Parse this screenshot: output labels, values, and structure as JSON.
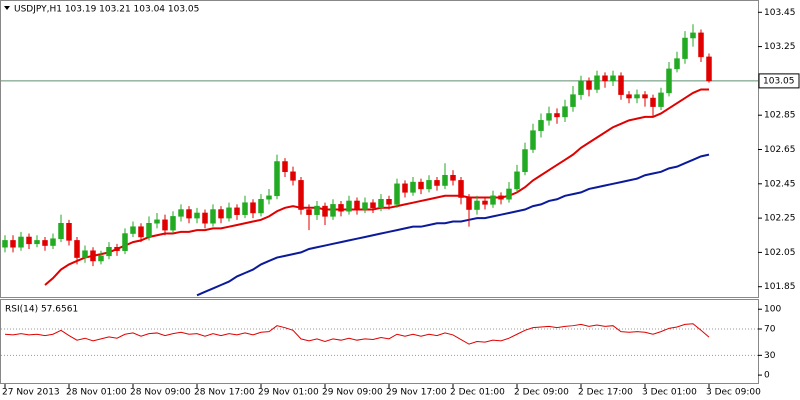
{
  "chart_data": [
    {
      "type": "candlestick",
      "title": "USDJPY,H1  103.19 103.21 103.04 103.05",
      "x": [
        "27 Nov 2013",
        null,
        null,
        null,
        null,
        null,
        null,
        null,
        "28 Nov 01:00",
        null,
        null,
        null,
        null,
        null,
        null,
        null,
        "28 Nov 09:00",
        null,
        null,
        null,
        null,
        null,
        null,
        null,
        "28 Nov 17:00",
        null,
        null,
        null,
        null,
        null,
        null,
        null,
        "29 Nov 01:00",
        null,
        null,
        null,
        null,
        null,
        null,
        null,
        "29 Nov 09:00",
        null,
        null,
        null,
        null,
        null,
        null,
        null,
        "29 Nov 17:00",
        null,
        null,
        null,
        null,
        null,
        null,
        null,
        "2 Dec 01:00",
        null,
        null,
        null,
        null,
        null,
        null,
        null,
        "2 Dec 09:00",
        null,
        null,
        null,
        null,
        null,
        null,
        null,
        "2 Dec 17:00",
        null,
        null,
        null,
        null,
        null,
        null,
        null,
        "3 Dec 01:00",
        null,
        null,
        null,
        null,
        null,
        null,
        null,
        "3 Dec 09:00"
      ],
      "open": [
        102.08,
        102.12,
        102.08,
        102.14,
        102.1,
        102.12,
        102.09,
        102.13,
        102.22,
        102.12,
        102.02,
        102.06,
        102.0,
        102.03,
        102.08,
        102.06,
        102.16,
        102.2,
        102.14,
        102.22,
        102.24,
        102.18,
        102.26,
        102.3,
        102.25,
        102.28,
        102.22,
        102.3,
        102.25,
        102.31,
        102.27,
        102.34,
        102.28,
        102.36,
        102.38,
        102.58,
        102.52,
        102.47,
        102.3,
        102.27,
        102.32,
        102.26,
        102.33,
        102.29,
        102.35,
        102.3,
        102.34,
        102.31,
        102.36,
        102.33,
        102.45,
        102.4,
        102.46,
        102.42,
        102.47,
        102.44,
        102.5,
        102.47,
        102.37,
        102.3,
        102.35,
        102.33,
        102.38,
        102.36,
        102.42,
        102.52,
        102.65,
        102.76,
        102.82,
        102.86,
        102.84,
        102.9,
        102.97,
        103.05,
        103.0,
        103.08,
        103.05,
        103.08,
        102.97,
        102.95,
        102.97,
        102.95,
        102.9,
        102.98,
        103.12,
        103.18,
        103.3,
        103.33,
        103.19
      ],
      "high": [
        102.15,
        102.15,
        102.17,
        102.16,
        102.15,
        102.14,
        102.16,
        102.27,
        102.24,
        102.14,
        102.09,
        102.08,
        102.06,
        102.11,
        102.1,
        102.19,
        102.23,
        102.22,
        102.26,
        102.28,
        102.27,
        102.29,
        102.33,
        102.32,
        102.31,
        102.3,
        102.33,
        102.32,
        102.34,
        102.33,
        102.38,
        102.36,
        102.39,
        102.42,
        102.62,
        102.6,
        102.55,
        102.49,
        102.33,
        102.35,
        102.34,
        102.36,
        102.35,
        102.38,
        102.37,
        102.37,
        102.36,
        102.39,
        102.38,
        102.48,
        102.47,
        102.49,
        102.48,
        102.5,
        102.49,
        102.57,
        102.53,
        102.49,
        102.39,
        102.38,
        102.37,
        102.41,
        102.4,
        102.46,
        102.56,
        102.69,
        102.8,
        102.86,
        102.9,
        102.89,
        102.94,
        103.02,
        103.08,
        103.07,
        103.11,
        103.1,
        103.11,
        103.1,
        102.99,
        103.0,
        102.99,
        102.97,
        103.01,
        103.16,
        103.22,
        103.34,
        103.38,
        103.35,
        103.21
      ],
      "low": [
        102.05,
        102.05,
        102.06,
        102.07,
        102.08,
        102.06,
        102.07,
        102.11,
        102.09,
        101.98,
        101.99,
        101.97,
        101.98,
        102.01,
        102.03,
        102.04,
        102.14,
        102.11,
        102.12,
        102.19,
        102.15,
        102.16,
        102.23,
        102.22,
        102.22,
        102.19,
        102.2,
        102.22,
        102.23,
        102.24,
        102.25,
        102.25,
        102.26,
        102.33,
        102.36,
        102.49,
        102.44,
        102.27,
        102.18,
        102.24,
        102.21,
        102.24,
        102.26,
        102.27,
        102.27,
        102.28,
        102.28,
        102.29,
        102.3,
        102.31,
        102.37,
        102.38,
        102.39,
        102.4,
        102.41,
        102.42,
        102.44,
        102.33,
        102.2,
        102.27,
        102.3,
        102.31,
        102.33,
        102.34,
        102.4,
        102.5,
        102.63,
        102.72,
        102.79,
        102.8,
        102.81,
        102.87,
        102.94,
        102.96,
        102.98,
        103.01,
        103.02,
        102.94,
        102.92,
        102.92,
        102.9,
        102.84,
        102.88,
        102.96,
        103.1,
        103.15,
        103.25,
        103.16,
        103.04
      ],
      "close": [
        102.12,
        102.08,
        102.14,
        102.1,
        102.12,
        102.09,
        102.13,
        102.22,
        102.12,
        102.02,
        102.06,
        102.0,
        102.03,
        102.08,
        102.06,
        102.16,
        102.2,
        102.14,
        102.22,
        102.24,
        102.18,
        102.26,
        102.3,
        102.25,
        102.28,
        102.22,
        102.3,
        102.25,
        102.31,
        102.27,
        102.34,
        102.28,
        102.36,
        102.38,
        102.58,
        102.52,
        102.47,
        102.3,
        102.27,
        102.32,
        102.26,
        102.33,
        102.29,
        102.35,
        102.3,
        102.34,
        102.31,
        102.36,
        102.33,
        102.45,
        102.4,
        102.46,
        102.42,
        102.47,
        102.44,
        102.5,
        102.47,
        102.37,
        102.3,
        102.35,
        102.33,
        102.38,
        102.36,
        102.42,
        102.52,
        102.65,
        102.76,
        102.82,
        102.86,
        102.84,
        102.9,
        102.97,
        103.05,
        103.0,
        103.08,
        103.05,
        103.08,
        102.97,
        102.95,
        102.97,
        102.95,
        102.9,
        102.98,
        103.12,
        103.18,
        103.3,
        103.33,
        103.19,
        103.05
      ],
      "up_color": "#22aa22",
      "down_color": "#e00000",
      "overlays": [
        {
          "color": "#e00000",
          "values": [
            null,
            null,
            null,
            null,
            null,
            101.86,
            101.9,
            101.95,
            101.98,
            102.0,
            102.02,
            102.03,
            102.04,
            102.05,
            102.07,
            102.09,
            102.11,
            102.12,
            102.14,
            102.15,
            102.16,
            102.16,
            102.17,
            102.17,
            102.18,
            102.18,
            102.19,
            102.19,
            102.2,
            102.21,
            102.22,
            102.23,
            102.24,
            102.26,
            102.29,
            102.31,
            102.32,
            102.31,
            102.31,
            102.31,
            102.3,
            102.3,
            102.3,
            102.3,
            102.3,
            102.3,
            102.3,
            102.31,
            102.31,
            102.32,
            102.33,
            102.34,
            102.35,
            102.36,
            102.37,
            102.38,
            102.38,
            102.38,
            102.37,
            102.37,
            102.37,
            102.37,
            102.37,
            102.38,
            102.4,
            102.43,
            102.47,
            102.5,
            102.53,
            102.56,
            102.59,
            102.62,
            102.66,
            102.69,
            102.72,
            102.75,
            102.78,
            102.8,
            102.82,
            102.83,
            102.84,
            102.84,
            102.86,
            102.89,
            102.92,
            102.95,
            102.98,
            103.0,
            103.0
          ]
        },
        {
          "color": "#0a1a9a",
          "values": [
            null,
            null,
            null,
            null,
            null,
            null,
            null,
            null,
            null,
            null,
            null,
            null,
            null,
            null,
            null,
            null,
            null,
            null,
            null,
            null,
            null,
            null,
            null,
            null,
            101.8,
            101.82,
            101.84,
            101.86,
            101.88,
            101.91,
            101.93,
            101.95,
            101.98,
            102.0,
            102.02,
            102.03,
            102.04,
            102.05,
            102.07,
            102.08,
            102.09,
            102.1,
            102.11,
            102.12,
            102.13,
            102.14,
            102.15,
            102.16,
            102.17,
            102.18,
            102.19,
            102.2,
            102.2,
            102.21,
            102.22,
            102.22,
            102.23,
            102.23,
            102.24,
            102.25,
            102.25,
            102.26,
            102.27,
            102.28,
            102.29,
            102.3,
            102.32,
            102.33,
            102.35,
            102.36,
            102.38,
            102.39,
            102.4,
            102.42,
            102.43,
            102.44,
            102.45,
            102.46,
            102.47,
            102.48,
            102.5,
            102.51,
            102.52,
            102.54,
            102.55,
            102.57,
            102.59,
            102.61,
            102.62
          ]
        }
      ],
      "current_price": 103.05,
      "ylim": [
        101.79,
        103.51
      ],
      "yticks": [
        101.85,
        102.05,
        102.25,
        102.45,
        102.65,
        102.85,
        103.25,
        103.45
      ]
    },
    {
      "type": "line",
      "title": "RSI(14) 57.6561",
      "color": "#e00000",
      "values": [
        62,
        61,
        63,
        61,
        62,
        60,
        62,
        68,
        60,
        53,
        56,
        52,
        55,
        58,
        56,
        62,
        64,
        59,
        63,
        64,
        60,
        63,
        65,
        62,
        63,
        59,
        63,
        60,
        63,
        61,
        64,
        61,
        65,
        66,
        75,
        72,
        68,
        55,
        52,
        55,
        51,
        55,
        53,
        56,
        53,
        55,
        54,
        57,
        55,
        62,
        59,
        62,
        59,
        62,
        60,
        64,
        61,
        54,
        47,
        51,
        50,
        53,
        52,
        56,
        62,
        68,
        72,
        73,
        74,
        72,
        74,
        75,
        77,
        74,
        76,
        74,
        75,
        66,
        65,
        66,
        65,
        62,
        66,
        71,
        73,
        77,
        78,
        68,
        57.6561
      ],
      "ylim": [
        -12,
        114
      ],
      "yticks": [
        0,
        30,
        70,
        100
      ],
      "levels": [
        30,
        70
      ]
    }
  ]
}
